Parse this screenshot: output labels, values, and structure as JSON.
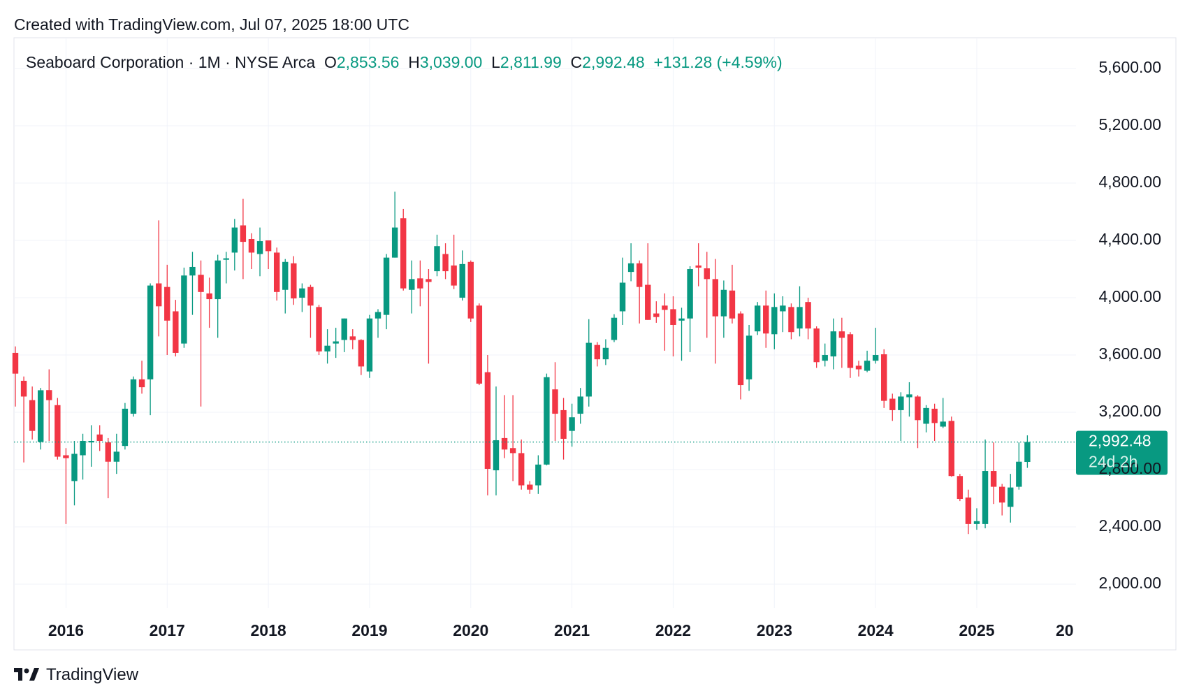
{
  "created_note": "Created with TradingView.com, Jul 07, 2025 18:00 UTC",
  "brand": "TradingView",
  "chart_data": {
    "type": "candlestick",
    "header": {
      "symbol": "Seaboard Corporation · 1M · NYSE Arca",
      "open_label": "O",
      "open": "2,853.56",
      "high_label": "H",
      "high": "3,039.00",
      "low_label": "L",
      "low": "2,811.99",
      "close_label": "C",
      "close": "2,992.48",
      "change": "+131.28 (+4.59%)"
    },
    "up_color": "#089981",
    "down_color": "#f23645",
    "categories": [
      null,
      null,
      null,
      null,
      null,
      null,
      "2016",
      null,
      null,
      null,
      null,
      null,
      null,
      null,
      null,
      null,
      null,
      null,
      "2017",
      null,
      null,
      null,
      null,
      null,
      null,
      null,
      null,
      null,
      null,
      null,
      "2018",
      null,
      null,
      null,
      null,
      null,
      null,
      null,
      null,
      null,
      null,
      null,
      "2019",
      null,
      null,
      null,
      null,
      null,
      null,
      null,
      null,
      null,
      null,
      null,
      "2020",
      null,
      null,
      null,
      null,
      null,
      null,
      null,
      null,
      null,
      null,
      null,
      "2021",
      null,
      null,
      null,
      null,
      null,
      null,
      null,
      null,
      null,
      null,
      null,
      "2022",
      null,
      null,
      null,
      null,
      null,
      null,
      null,
      null,
      null,
      null,
      null,
      "2023",
      null,
      null,
      null,
      null,
      null,
      null,
      null,
      null,
      null,
      null,
      null,
      "2024",
      null,
      null,
      null,
      null,
      null,
      null,
      null,
      null,
      null,
      null,
      null,
      "2025",
      null,
      null,
      null,
      null,
      null,
      null
    ],
    "x_overflow_label": "20",
    "open": [
      3615,
      3420,
      3285,
      2993,
      3355,
      3250,
      2900,
      2720,
      2900,
      2990,
      3045,
      2990,
      2855,
      2965,
      3190,
      3430,
      3430,
      4100,
      4075,
      3905,
      3680,
      4155,
      4160,
      4030,
      3990,
      4265,
      4315,
      4505,
      4410,
      4305,
      4400,
      4315,
      4055,
      4240,
      4000,
      4075,
      3935,
      3625,
      3680,
      3705,
      3730,
      3705,
      3485,
      3855,
      3880,
      4280,
      4555,
      4055,
      4135,
      4130,
      4185,
      4305,
      4225,
      4000,
      4250,
      3945,
      3480,
      2795,
      3020,
      2950,
      2915,
      2695,
      2690,
      2835,
      3360,
      3215,
      3070,
      3190,
      3310,
      3670,
      3570,
      3705,
      3905,
      4180,
      4240,
      4090,
      3890,
      3945,
      3920,
      3840,
      3855,
      4225,
      4205,
      4130,
      3870,
      4050,
      3890,
      3430,
      3765,
      3945,
      3745,
      3905,
      3935,
      3785,
      3970,
      3785,
      3560,
      3590,
      3765,
      3745,
      3525,
      3490,
      3560,
      3605,
      3295,
      3215,
      3305,
      3310,
      3120,
      3225,
      3100,
      3140,
      2755,
      2605,
      2420,
      2420,
      2790,
      2680,
      2540,
      2680,
      2853.56
    ],
    "high": [
      3660,
      3450,
      3380,
      3370,
      3500,
      3300,
      2950,
      3000,
      3050,
      3110,
      3110,
      3020,
      3050,
      3265,
      3450,
      3560,
      4100,
      4540,
      4230,
      3985,
      4210,
      4320,
      4260,
      4140,
      4300,
      4320,
      4550,
      4690,
      4450,
      4490,
      4400,
      4350,
      4270,
      4290,
      4100,
      4090,
      3950,
      3780,
      3790,
      3855,
      3780,
      3710,
      3880,
      3920,
      4305,
      4740,
      4620,
      4260,
      4260,
      4200,
      4440,
      4380,
      4440,
      4330,
      4260,
      3960,
      3600,
      3380,
      3320,
      3320,
      3010,
      2720,
      2900,
      3470,
      3550,
      3300,
      3260,
      3370,
      3850,
      3690,
      3710,
      3885,
      4280,
      4380,
      4260,
      4380,
      3975,
      4030,
      4010,
      3930,
      4220,
      4380,
      4320,
      4270,
      4120,
      4230,
      3905,
      3810,
      3970,
      4050,
      4030,
      4010,
      3960,
      4080,
      4000,
      3800,
      3680,
      3855,
      3860,
      3760,
      3560,
      3630,
      3790,
      3640,
      3330,
      3340,
      3410,
      3320,
      3250,
      3260,
      3300,
      3170,
      2770,
      2660,
      2530,
      3010,
      2990,
      2700,
      2770,
      2990,
      3039
    ],
    "low": [
      3240,
      2850,
      3010,
      2940,
      3000,
      2870,
      2420,
      2550,
      2730,
      2820,
      2930,
      2600,
      2770,
      2940,
      3170,
      3330,
      3180,
      3730,
      3600,
      3590,
      3650,
      3880,
      3240,
      3790,
      3720,
      4100,
      4190,
      4130,
      4200,
      4150,
      4200,
      3980,
      3890,
      3950,
      3900,
      3720,
      3600,
      3540,
      3580,
      3620,
      3640,
      3460,
      3440,
      3720,
      3780,
      4280,
      4050,
      3890,
      3940,
      3540,
      4150,
      4130,
      4060,
      3980,
      3830,
      3390,
      2620,
      2620,
      2880,
      2720,
      2660,
      2630,
      2630,
      2830,
      3000,
      2870,
      2960,
      3120,
      3240,
      3520,
      3530,
      3690,
      3810,
      4115,
      3820,
      3845,
      3825,
      3630,
      3590,
      3560,
      3620,
      4080,
      3720,
      3540,
      3720,
      3820,
      3290,
      3350,
      3740,
      3650,
      3640,
      3760,
      3710,
      3730,
      3710,
      3510,
      3520,
      3500,
      3510,
      3440,
      3450,
      3480,
      3540,
      3230,
      3140,
      3000,
      3170,
      2950,
      3060,
      3000,
      3090,
      2750,
      2580,
      2350,
      2380,
      2390,
      2560,
      2480,
      2430,
      2660,
      2811.99
    ],
    "close": [
      3470,
      3310,
      3070,
      3354,
      3285,
      2890,
      2880,
      2910,
      3000,
      3000,
      3000,
      2855,
      2925,
      3225,
      3430,
      3375,
      4085,
      3940,
      3840,
      3615,
      4155,
      4215,
      4040,
      3990,
      4260,
      4275,
      4490,
      4390,
      4315,
      4395,
      4325,
      4040,
      4250,
      3995,
      4065,
      3945,
      3625,
      3665,
      3695,
      3855,
      3705,
      3520,
      3855,
      3900,
      4280,
      4490,
      4065,
      4130,
      4065,
      4110,
      4360,
      4185,
      4085,
      4235,
      3855,
      3400,
      2805,
      3005,
      2940,
      2915,
      2690,
      2660,
      2835,
      3445,
      3190,
      3015,
      3165,
      3310,
      3685,
      3570,
      3650,
      3860,
      4105,
      4240,
      4075,
      3845,
      3865,
      3915,
      3810,
      3855,
      4200,
      4210,
      4130,
      3870,
      4055,
      3855,
      3390,
      3735,
      3945,
      3750,
      3935,
      3945,
      3760,
      3935,
      3785,
      3550,
      3600,
      3765,
      3720,
      3510,
      3500,
      3560,
      3600,
      3280,
      3215,
      3310,
      3325,
      3145,
      3230,
      3125,
      3135,
      2755,
      2595,
      2420,
      2440,
      2790,
      2680,
      2570,
      2675,
      2855,
      2992.48
    ],
    "last_price_label": "2,992.48",
    "countdown": "24d 2h",
    "ylim": [
      1834,
      5815
    ],
    "yticks": [
      {
        "value": 2000,
        "label": "2,000.00"
      },
      {
        "value": 2400,
        "label": "2,400.00"
      },
      {
        "value": 2800,
        "label": "2,800.00"
      },
      {
        "value": 3200,
        "label": "3,200.00"
      },
      {
        "value": 3600,
        "label": "3,600.00"
      },
      {
        "value": 4000,
        "label": "4,000.00"
      },
      {
        "value": 4400,
        "label": "4,400.00"
      },
      {
        "value": 4800,
        "label": "4,800.00"
      },
      {
        "value": 5200,
        "label": "5,200.00"
      },
      {
        "value": 5600,
        "label": "5,600.00"
      }
    ],
    "grid": true
  }
}
